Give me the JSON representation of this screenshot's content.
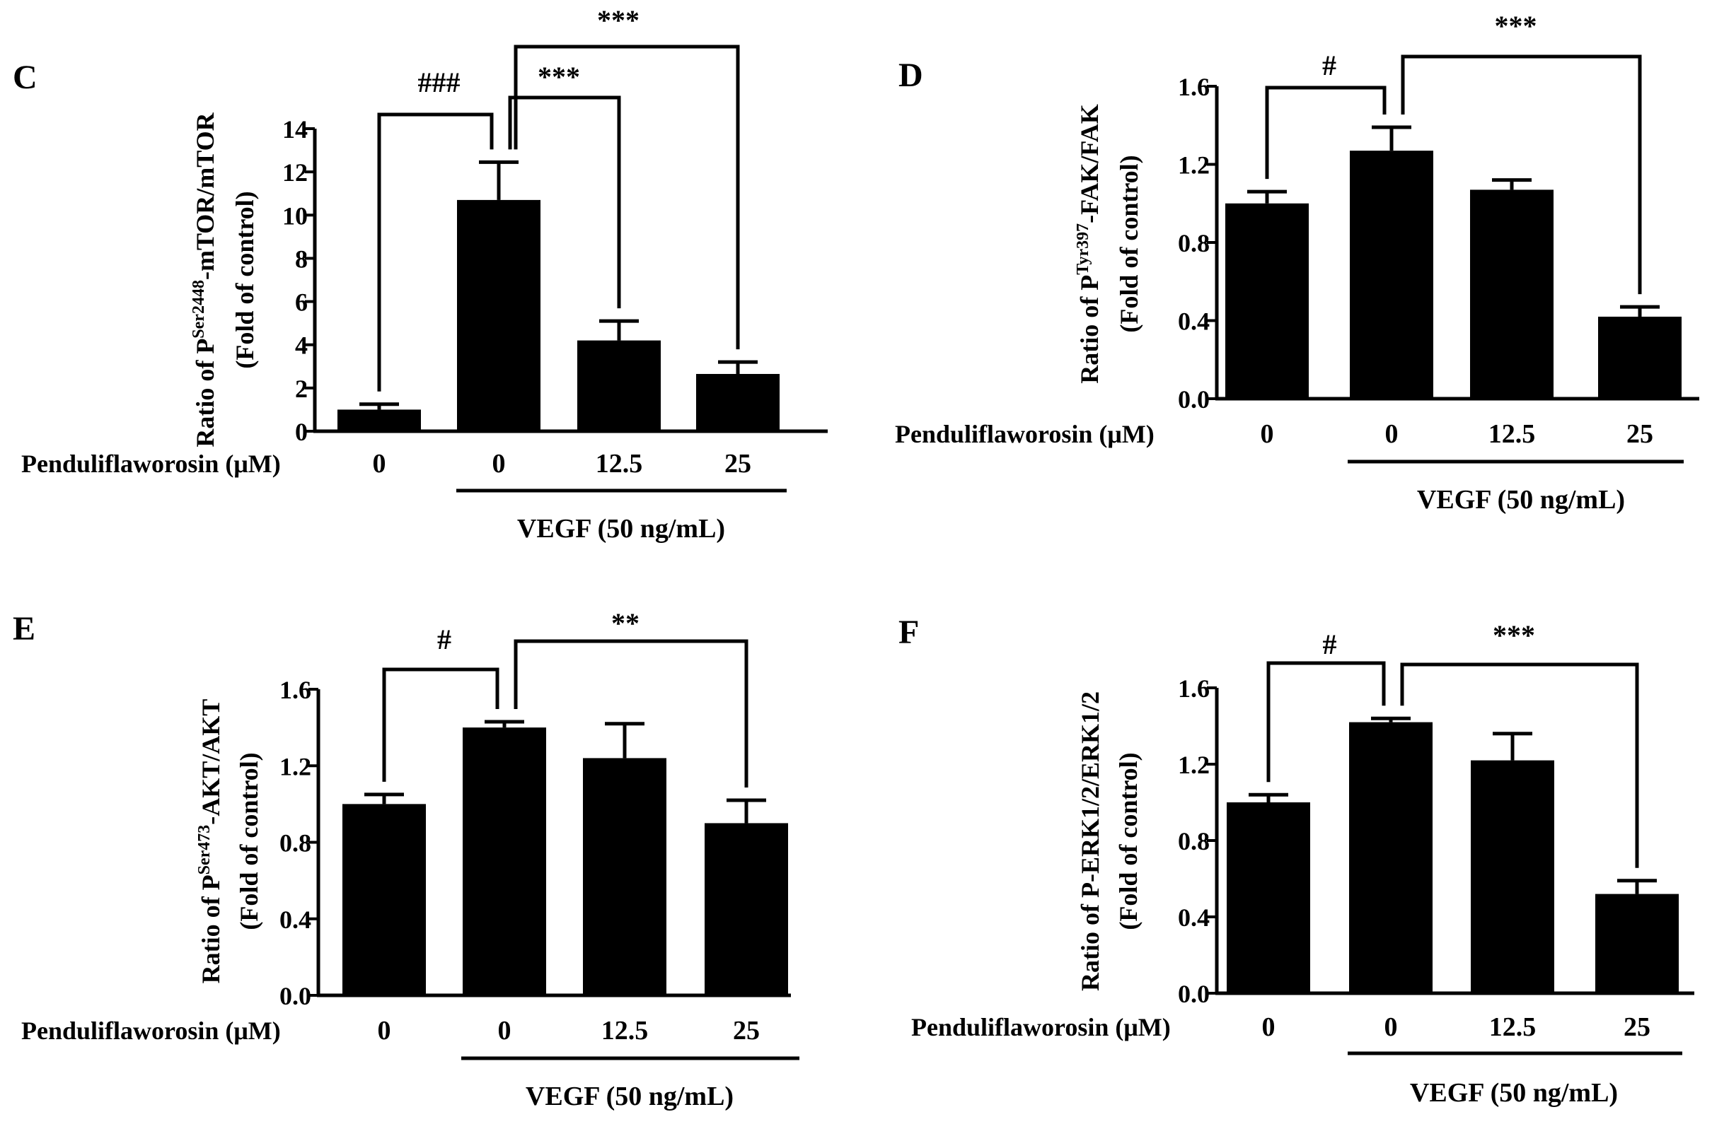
{
  "chart_data": [
    {
      "panel": "C",
      "type": "bar",
      "ylabel_prefix": "Ratio of P",
      "ylabel_sup": "Ser2448",
      "ylabel_suffix": "-mTOR/mTOR",
      "ylabel_line2": "(Fold of control)",
      "ylim": [
        0,
        14
      ],
      "yticks": [
        "0",
        "2",
        "4",
        "6",
        "8",
        "10",
        "12",
        "14"
      ],
      "row_label": "Penduliflaworosin (μM)",
      "categories": [
        "0",
        "0",
        "12.5",
        "25"
      ],
      "values": [
        1.0,
        10.7,
        4.2,
        2.65
      ],
      "errors": [
        0.25,
        1.75,
        0.9,
        0.55
      ],
      "group_label": "VEGF (50 ng/mL)",
      "annotations": [
        {
          "from": 0,
          "to": 1,
          "label": "###"
        },
        {
          "from": 1,
          "to": 2,
          "label": "***"
        },
        {
          "from": 1,
          "to": 3,
          "label": "***"
        }
      ]
    },
    {
      "panel": "D",
      "type": "bar",
      "ylabel_prefix": "Ratio of P",
      "ylabel_sup": "Tyr397",
      "ylabel_suffix": "-FAK/FAK",
      "ylabel_line2": "(Fold of control)",
      "ylim": [
        0,
        1.6
      ],
      "yticks": [
        "0.0",
        "0.4",
        "0.8",
        "1.2",
        "1.6"
      ],
      "row_label": "Penduliflaworosin (μM)",
      "categories": [
        "0",
        "0",
        "12.5",
        "25"
      ],
      "values": [
        1.0,
        1.27,
        1.07,
        0.42
      ],
      "errors": [
        0.06,
        0.12,
        0.05,
        0.05
      ],
      "group_label": "VEGF (50 ng/mL)",
      "annotations": [
        {
          "from": 0,
          "to": 1,
          "label": "#"
        },
        {
          "from": 1,
          "to": 3,
          "label": "***"
        }
      ]
    },
    {
      "panel": "E",
      "type": "bar",
      "ylabel_prefix": "Ratio of P",
      "ylabel_sup": "Ser473",
      "ylabel_suffix": "-AKT/AKT",
      "ylabel_line2": "(Fold of control)",
      "ylim": [
        0,
        1.6
      ],
      "yticks": [
        "0.0",
        "0.4",
        "0.8",
        "1.2",
        "1.6"
      ],
      "row_label": "Penduliflaworosin (μM)",
      "categories": [
        "0",
        "0",
        "12.5",
        "25"
      ],
      "values": [
        1.0,
        1.4,
        1.24,
        0.9
      ],
      "errors": [
        0.05,
        0.03,
        0.18,
        0.12
      ],
      "group_label": "VEGF (50 ng/mL)",
      "annotations": [
        {
          "from": 0,
          "to": 1,
          "label": "#"
        },
        {
          "from": 1,
          "to": 3,
          "label": "**"
        }
      ]
    },
    {
      "panel": "F",
      "type": "bar",
      "ylabel_prefix": "Ratio of P-ERK1/2/ERK1/2",
      "ylabel_sup": "",
      "ylabel_suffix": "",
      "ylabel_line2": "(Fold of control)",
      "ylim": [
        0,
        1.6
      ],
      "yticks": [
        "0.0",
        "0.4",
        "0.8",
        "1.2",
        "1.6"
      ],
      "row_label": "Penduliflaworosin (μM)",
      "categories": [
        "0",
        "0",
        "12.5",
        "25"
      ],
      "values": [
        1.0,
        1.42,
        1.22,
        0.52
      ],
      "errors": [
        0.04,
        0.02,
        0.14,
        0.07
      ],
      "group_label": "VEGF (50 ng/mL)",
      "annotations": [
        {
          "from": 0,
          "to": 1,
          "label": "#"
        },
        {
          "from": 1,
          "to": 3,
          "label": "***"
        }
      ]
    }
  ]
}
